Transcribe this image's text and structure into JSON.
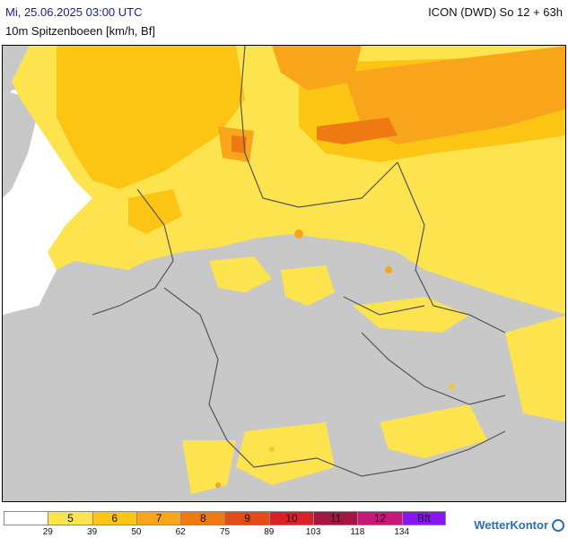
{
  "header": {
    "datetime": "Mi, 25.06.2025 03:00 UTC",
    "subtitle": "10m Spitzenboeen [km/h, Bf]",
    "model": "ICON (DWD) So 12 + 63h"
  },
  "legend": {
    "cells": [
      {
        "label": "",
        "color": "#ffffff"
      },
      {
        "label": "5",
        "color": "#fde34e"
      },
      {
        "label": "6",
        "color": "#fcc514"
      },
      {
        "label": "7",
        "color": "#f8a51c"
      },
      {
        "label": "8",
        "color": "#f07a12"
      },
      {
        "label": "9",
        "color": "#e44b16"
      },
      {
        "label": "10",
        "color": "#d92027"
      },
      {
        "label": "11",
        "color": "#a41640"
      },
      {
        "label": "12",
        "color": "#c7177a"
      },
      {
        "label": "Bft",
        "color": "#8a16f2"
      }
    ],
    "ticks": [
      "29",
      "39",
      "50",
      "62",
      "75",
      "89",
      "103",
      "118",
      "134"
    ]
  },
  "brand": {
    "name": "WetterKontor"
  },
  "colors": {
    "land": "#c8c8c8",
    "sea_calm": "#ffffff",
    "level5": "#fde34e",
    "level6": "#fcc514",
    "level7": "#f8a51c",
    "level8": "#f07a12",
    "border": "#555555"
  }
}
